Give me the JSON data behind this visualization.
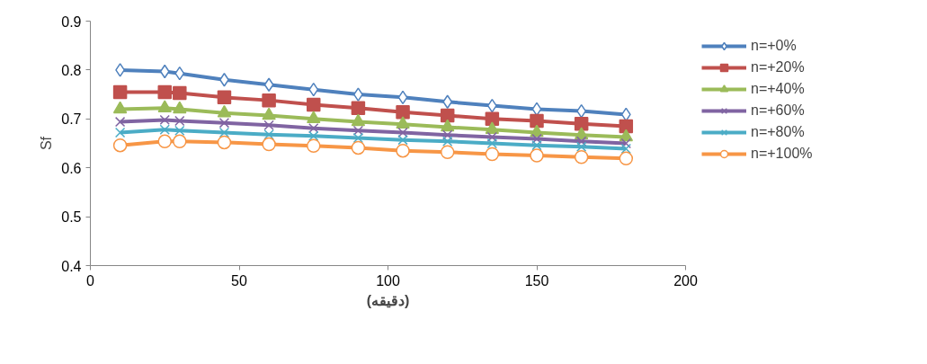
{
  "chart_data": {
    "type": "line",
    "xlabel": "(دقيقه)",
    "ylabel": "Sf",
    "x": [
      10,
      25,
      30,
      45,
      60,
      75,
      90,
      105,
      120,
      135,
      150,
      165,
      180
    ],
    "xlim": [
      0,
      200
    ],
    "xticks": [
      0,
      50,
      100,
      150,
      200
    ],
    "ylim": [
      0.4,
      0.9
    ],
    "yticks": [
      {
        "value": 0.4,
        "label": "0.4"
      },
      {
        "value": 0.5,
        "label": "0.5"
      },
      {
        "value": 0.6,
        "label": "0.6"
      },
      {
        "value": 0.7,
        "label": "0.7"
      },
      {
        "value": 0.8,
        "label": "0.8"
      },
      {
        "value": 0.9,
        "label": "0.9"
      }
    ],
    "grid": false,
    "legend": "right",
    "line_style": "solid",
    "series": [
      {
        "name": "n=+0%",
        "color": "#4f81bd",
        "marker": "diamond",
        "values": [
          0.8,
          0.797,
          0.793,
          0.78,
          0.77,
          0.76,
          0.75,
          0.744,
          0.735,
          0.727,
          0.72,
          0.716,
          0.709
        ]
      },
      {
        "name": "n=+20%",
        "color": "#c0504d",
        "marker": "square",
        "values": [
          0.755,
          0.755,
          0.753,
          0.744,
          0.738,
          0.729,
          0.722,
          0.714,
          0.707,
          0.7,
          0.696,
          0.69,
          0.685
        ]
      },
      {
        "name": "n=+40%",
        "color": "#9bbb59",
        "marker": "triangle",
        "values": [
          0.72,
          0.722,
          0.72,
          0.712,
          0.707,
          0.7,
          0.694,
          0.689,
          0.683,
          0.678,
          0.672,
          0.667,
          0.663
        ]
      },
      {
        "name": "n=+60%",
        "color": "#8064a2",
        "marker": "cross",
        "values": [
          0.694,
          0.698,
          0.696,
          0.692,
          0.687,
          0.681,
          0.676,
          0.672,
          0.667,
          0.663,
          0.659,
          0.654,
          0.65
        ]
      },
      {
        "name": "n=+80%",
        "color": "#4bacc6",
        "marker": "cross",
        "values": [
          0.672,
          0.678,
          0.676,
          0.672,
          0.668,
          0.665,
          0.661,
          0.657,
          0.654,
          0.65,
          0.646,
          0.643,
          0.639
        ]
      },
      {
        "name": "n=+100%",
        "color": "#f79646",
        "marker": "circle",
        "values": [
          0.646,
          0.654,
          0.654,
          0.652,
          0.648,
          0.645,
          0.641,
          0.635,
          0.632,
          0.628,
          0.625,
          0.622,
          0.619
        ]
      }
    ]
  }
}
